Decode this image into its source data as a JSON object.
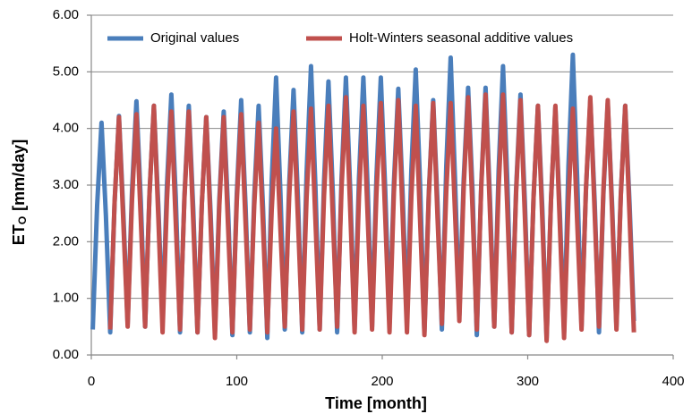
{
  "chart_data": {
    "type": "line",
    "y_label": "ET",
    "y_label_sub": "O",
    "y_label_unit": "[mm/day]",
    "x_label": "Time  [month]",
    "x": [
      1,
      4,
      7,
      10,
      13,
      16,
      19,
      22,
      25,
      28,
      31,
      34,
      37,
      40,
      43,
      46,
      49,
      52,
      55,
      58,
      61,
      64,
      67,
      70,
      73,
      76,
      79,
      82,
      85,
      88,
      91,
      94,
      97,
      100,
      103,
      106,
      109,
      112,
      115,
      118,
      121,
      124,
      127,
      130,
      133,
      136,
      139,
      142,
      145,
      148,
      151,
      154,
      157,
      160,
      163,
      166,
      169,
      172,
      175,
      178,
      181,
      184,
      187,
      190,
      193,
      196,
      199,
      202,
      205,
      208,
      211,
      214,
      217,
      220,
      223,
      226,
      229,
      232,
      235,
      238,
      241,
      244,
      247,
      250,
      253,
      256,
      259,
      262,
      265,
      268,
      271,
      274,
      277,
      280,
      283,
      286,
      289,
      292,
      295,
      298,
      301,
      304,
      307,
      310,
      313,
      316,
      319,
      322,
      325,
      328,
      331,
      334,
      337,
      340,
      343,
      346,
      349,
      352,
      355,
      358,
      361,
      364,
      367,
      370,
      373
    ],
    "series": [
      {
        "name": "Original values",
        "color": "#4a7ebb",
        "values": [
          0.45,
          2.64,
          4.1,
          2.46,
          0.4,
          2.69,
          4.22,
          2.5,
          0.55,
          2.91,
          4.48,
          2.71,
          0.5,
          2.84,
          4.4,
          2.65,
          0.6,
          3.0,
          4.6,
          2.8,
          0.4,
          2.8,
          4.4,
          2.6,
          0.4,
          2.68,
          4.2,
          2.49,
          0.4,
          2.74,
          4.3,
          2.55,
          0.35,
          2.84,
          4.5,
          2.63,
          0.4,
          2.8,
          4.4,
          2.6,
          0.3,
          3.06,
          4.9,
          2.83,
          0.45,
          2.99,
          4.68,
          2.78,
          0.4,
          3.22,
          5.1,
          2.99,
          0.45,
          3.08,
          4.83,
          2.86,
          0.4,
          3.1,
          4.9,
          2.88,
          0.45,
          3.12,
          4.9,
          2.9,
          0.5,
          3.14,
          4.9,
          2.92,
          0.55,
          3.04,
          4.7,
          2.83,
          0.6,
          3.26,
          5.04,
          3.04,
          0.4,
          2.86,
          4.5,
          2.66,
          0.45,
          3.33,
          5.25,
          3.09,
          0.7,
          3.11,
          4.72,
          2.91,
          0.35,
          2.97,
          4.72,
          2.75,
          0.5,
          3.26,
          5.1,
          3.03,
          0.4,
          2.92,
          4.6,
          2.71,
          0.35,
          2.78,
          4.4,
          2.58,
          0.3,
          2.74,
          4.37,
          2.54,
          0.4,
          3.34,
          5.3,
          3.1,
          0.5,
          2.9,
          4.5,
          2.7,
          0.4,
          2.83,
          4.45,
          2.63,
          0.5,
          2.84,
          4.4,
          2.65,
          0.6
        ]
      },
      {
        "name": "Holt-Winters seasonal additive values",
        "color": "#c0504d",
        "values": [
          null,
          null,
          null,
          null,
          0.45,
          2.7,
          4.2,
          2.33,
          0.5,
          2.75,
          4.25,
          2.38,
          0.5,
          2.84,
          4.4,
          2.45,
          0.4,
          2.74,
          4.3,
          2.35,
          0.45,
          2.76,
          4.3,
          2.38,
          0.4,
          2.68,
          4.2,
          2.3,
          0.3,
          2.64,
          4.2,
          2.25,
          0.4,
          2.71,
          4.25,
          2.33,
          0.45,
          2.64,
          4.1,
          2.28,
          0.4,
          2.56,
          4.0,
          2.2,
          0.5,
          2.78,
          4.3,
          2.4,
          0.45,
          2.79,
          4.35,
          2.4,
          0.45,
          2.82,
          4.4,
          2.43,
          0.5,
          2.93,
          4.55,
          2.53,
          0.4,
          2.8,
          4.4,
          2.4,
          0.45,
          2.85,
          4.45,
          2.45,
          0.4,
          2.86,
          4.5,
          2.45,
          0.4,
          2.8,
          4.4,
          2.4,
          0.35,
          2.81,
          4.45,
          2.4,
          0.55,
          2.89,
          4.45,
          2.5,
          0.6,
          2.97,
          4.55,
          2.58,
          0.45,
          2.94,
          4.6,
          2.53,
          0.5,
          2.96,
          4.6,
          2.55,
          0.4,
          2.86,
          4.5,
          2.45,
          0.35,
          2.78,
          4.4,
          2.38,
          0.25,
          2.74,
          4.4,
          2.33,
          0.3,
          2.73,
          4.35,
          2.33,
          0.45,
          2.91,
          4.55,
          2.5,
          0.5,
          2.9,
          4.5,
          2.5,
          0.45,
          2.82,
          4.4,
          2.43,
          0.4
        ]
      }
    ],
    "xlim": [
      0,
      400
    ],
    "xticks": [
      0,
      100,
      200,
      300,
      400
    ],
    "ylim": [
      0,
      6
    ],
    "yticks": [
      {
        "value": 0,
        "label": "0.00"
      },
      {
        "value": 1,
        "label": "1.00"
      },
      {
        "value": 2,
        "label": "2.00"
      },
      {
        "value": 3,
        "label": "3.00"
      },
      {
        "value": 4,
        "label": "4.00"
      },
      {
        "value": 5,
        "label": "5.00"
      },
      {
        "value": 6,
        "label": "6.00"
      }
    ],
    "grid": true,
    "legend": "top"
  }
}
